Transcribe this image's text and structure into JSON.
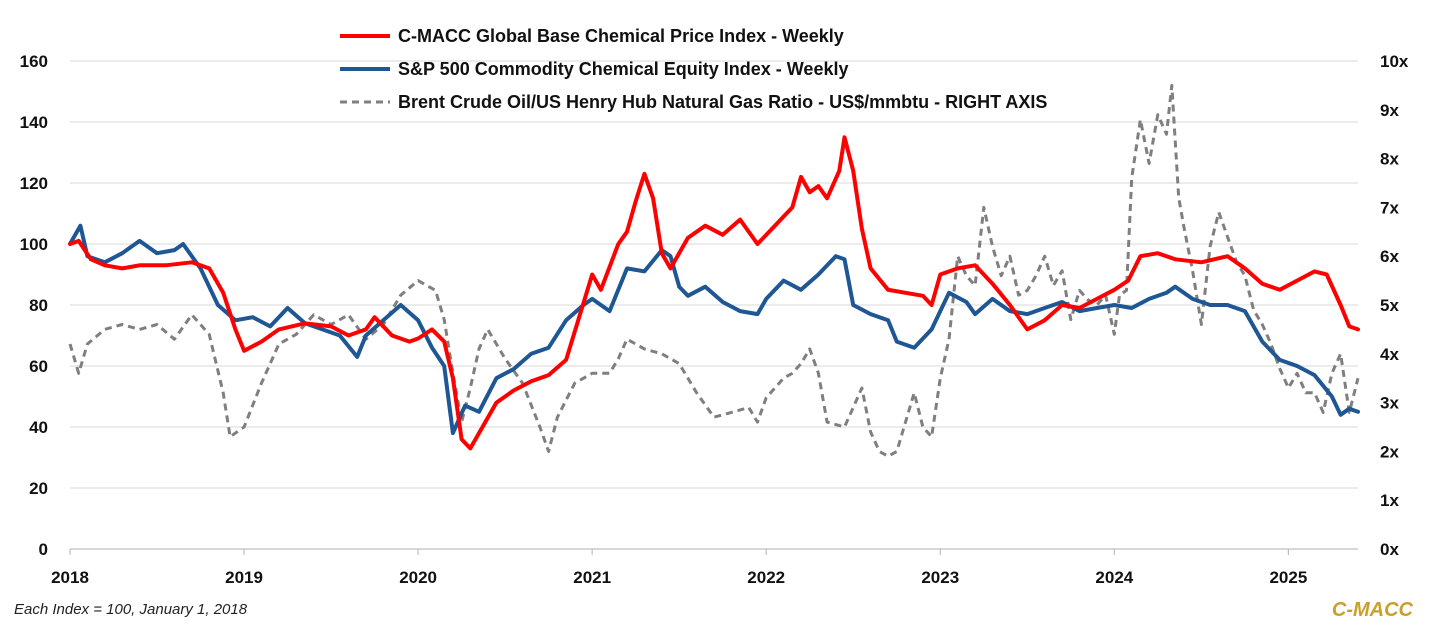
{
  "chart_data": {
    "type": "line",
    "title": "",
    "left_axis": {
      "min": 0,
      "max": 160,
      "ticks": [
        "0",
        "20",
        "40",
        "60",
        "80",
        "100",
        "120",
        "140",
        "160"
      ]
    },
    "right_axis": {
      "min": 0,
      "max": 10,
      "ticks": [
        "0x",
        "1x",
        "2x",
        "3x",
        "4x",
        "5x",
        "6x",
        "7x",
        "8x",
        "9x",
        "10x"
      ]
    },
    "x_axis": {
      "min": 2018.0,
      "max": 2025.4,
      "ticks": [
        "2018",
        "2019",
        "2020",
        "2021",
        "2022",
        "2023",
        "2024",
        "2025"
      ]
    },
    "grid": "horizontal",
    "legend_position": "top-center",
    "series": [
      {
        "name": "C-MACC Global Base Chemical Price Index - Weekly",
        "color": "#ff0000",
        "axis": "left",
        "style": "solid",
        "points": [
          [
            2018.0,
            100
          ],
          [
            2018.05,
            101
          ],
          [
            2018.12,
            95
          ],
          [
            2018.2,
            93
          ],
          [
            2018.3,
            92
          ],
          [
            2018.4,
            93
          ],
          [
            2018.55,
            93
          ],
          [
            2018.7,
            94
          ],
          [
            2018.8,
            92
          ],
          [
            2018.88,
            84
          ],
          [
            2018.95,
            72
          ],
          [
            2019.0,
            65
          ],
          [
            2019.1,
            68
          ],
          [
            2019.2,
            72
          ],
          [
            2019.35,
            74
          ],
          [
            2019.5,
            73
          ],
          [
            2019.6,
            70
          ],
          [
            2019.7,
            72
          ],
          [
            2019.75,
            76
          ],
          [
            2019.85,
            70
          ],
          [
            2019.95,
            68
          ],
          [
            2020.0,
            69
          ],
          [
            2020.08,
            72
          ],
          [
            2020.15,
            68
          ],
          [
            2020.2,
            56
          ],
          [
            2020.25,
            36
          ],
          [
            2020.3,
            33
          ],
          [
            2020.35,
            38
          ],
          [
            2020.45,
            48
          ],
          [
            2020.55,
            52
          ],
          [
            2020.65,
            55
          ],
          [
            2020.75,
            57
          ],
          [
            2020.85,
            62
          ],
          [
            2020.92,
            75
          ],
          [
            2021.0,
            90
          ],
          [
            2021.05,
            85
          ],
          [
            2021.15,
            100
          ],
          [
            2021.2,
            104
          ],
          [
            2021.25,
            114
          ],
          [
            2021.3,
            123
          ],
          [
            2021.35,
            115
          ],
          [
            2021.4,
            97
          ],
          [
            2021.45,
            92
          ],
          [
            2021.55,
            102
          ],
          [
            2021.65,
            106
          ],
          [
            2021.75,
            103
          ],
          [
            2021.85,
            108
          ],
          [
            2021.95,
            100
          ],
          [
            2022.05,
            106
          ],
          [
            2022.15,
            112
          ],
          [
            2022.2,
            122
          ],
          [
            2022.25,
            117
          ],
          [
            2022.3,
            119
          ],
          [
            2022.35,
            115
          ],
          [
            2022.42,
            124
          ],
          [
            2022.45,
            135
          ],
          [
            2022.5,
            124
          ],
          [
            2022.55,
            105
          ],
          [
            2022.6,
            92
          ],
          [
            2022.7,
            85
          ],
          [
            2022.8,
            84
          ],
          [
            2022.9,
            83
          ],
          [
            2022.95,
            80
          ],
          [
            2023.0,
            90
          ],
          [
            2023.1,
            92
          ],
          [
            2023.2,
            93
          ],
          [
            2023.3,
            87
          ],
          [
            2023.4,
            80
          ],
          [
            2023.5,
            72
          ],
          [
            2023.6,
            75
          ],
          [
            2023.7,
            80
          ],
          [
            2023.8,
            79
          ],
          [
            2023.9,
            82
          ],
          [
            2024.0,
            85
          ],
          [
            2024.08,
            88
          ],
          [
            2024.15,
            96
          ],
          [
            2024.25,
            97
          ],
          [
            2024.35,
            95
          ],
          [
            2024.5,
            94
          ],
          [
            2024.65,
            96
          ],
          [
            2024.75,
            92
          ],
          [
            2024.85,
            87
          ],
          [
            2024.95,
            85
          ],
          [
            2025.05,
            88
          ],
          [
            2025.15,
            91
          ],
          [
            2025.22,
            90
          ],
          [
            2025.3,
            80
          ],
          [
            2025.35,
            73
          ],
          [
            2025.4,
            72
          ]
        ]
      },
      {
        "name": "S&P 500 Commodity Chemical Equity Index - Weekly",
        "color": "#1f5694",
        "axis": "left",
        "style": "solid",
        "points": [
          [
            2018.0,
            100
          ],
          [
            2018.06,
            106
          ],
          [
            2018.1,
            96
          ],
          [
            2018.2,
            94
          ],
          [
            2018.3,
            97
          ],
          [
            2018.4,
            101
          ],
          [
            2018.5,
            97
          ],
          [
            2018.6,
            98
          ],
          [
            2018.65,
            100
          ],
          [
            2018.75,
            92
          ],
          [
            2018.85,
            80
          ],
          [
            2018.95,
            75
          ],
          [
            2019.05,
            76
          ],
          [
            2019.15,
            73
          ],
          [
            2019.25,
            79
          ],
          [
            2019.35,
            74
          ],
          [
            2019.45,
            72
          ],
          [
            2019.55,
            70
          ],
          [
            2019.65,
            63
          ],
          [
            2019.7,
            70
          ],
          [
            2019.8,
            75
          ],
          [
            2019.9,
            80
          ],
          [
            2020.0,
            75
          ],
          [
            2020.08,
            66
          ],
          [
            2020.15,
            60
          ],
          [
            2020.2,
            38
          ],
          [
            2020.27,
            47
          ],
          [
            2020.35,
            45
          ],
          [
            2020.45,
            56
          ],
          [
            2020.55,
            59
          ],
          [
            2020.65,
            64
          ],
          [
            2020.75,
            66
          ],
          [
            2020.85,
            75
          ],
          [
            2020.95,
            80
          ],
          [
            2021.0,
            82
          ],
          [
            2021.05,
            80
          ],
          [
            2021.1,
            78
          ],
          [
            2021.2,
            92
          ],
          [
            2021.3,
            91
          ],
          [
            2021.4,
            98
          ],
          [
            2021.45,
            96
          ],
          [
            2021.5,
            86
          ],
          [
            2021.55,
            83
          ],
          [
            2021.65,
            86
          ],
          [
            2021.75,
            81
          ],
          [
            2021.85,
            78
          ],
          [
            2021.95,
            77
          ],
          [
            2022.0,
            82
          ],
          [
            2022.1,
            88
          ],
          [
            2022.2,
            85
          ],
          [
            2022.3,
            90
          ],
          [
            2022.4,
            96
          ],
          [
            2022.45,
            95
          ],
          [
            2022.5,
            80
          ],
          [
            2022.6,
            77
          ],
          [
            2022.7,
            75
          ],
          [
            2022.75,
            68
          ],
          [
            2022.85,
            66
          ],
          [
            2022.95,
            72
          ],
          [
            2023.05,
            84
          ],
          [
            2023.15,
            81
          ],
          [
            2023.2,
            77
          ],
          [
            2023.3,
            82
          ],
          [
            2023.4,
            78
          ],
          [
            2023.5,
            77
          ],
          [
            2023.6,
            79
          ],
          [
            2023.7,
            81
          ],
          [
            2023.8,
            78
          ],
          [
            2023.9,
            79
          ],
          [
            2024.0,
            80
          ],
          [
            2024.1,
            79
          ],
          [
            2024.2,
            82
          ],
          [
            2024.3,
            84
          ],
          [
            2024.35,
            86
          ],
          [
            2024.45,
            82
          ],
          [
            2024.55,
            80
          ],
          [
            2024.65,
            80
          ],
          [
            2024.75,
            78
          ],
          [
            2024.85,
            68
          ],
          [
            2024.95,
            62
          ],
          [
            2025.05,
            60
          ],
          [
            2025.15,
            57
          ],
          [
            2025.25,
            50
          ],
          [
            2025.3,
            44
          ],
          [
            2025.35,
            46
          ],
          [
            2025.4,
            45
          ]
        ]
      },
      {
        "name": "Brent Crude Oil/US Henry Hub Natural Gas Ratio - US$/mmbtu - RIGHT AXIS",
        "color": "#7f7f7f",
        "axis": "right",
        "style": "dashed",
        "points": [
          [
            2018.0,
            4.2
          ],
          [
            2018.05,
            3.6
          ],
          [
            2018.1,
            4.2
          ],
          [
            2018.2,
            4.5
          ],
          [
            2018.3,
            4.6
          ],
          [
            2018.4,
            4.5
          ],
          [
            2018.5,
            4.6
          ],
          [
            2018.6,
            4.3
          ],
          [
            2018.7,
            4.8
          ],
          [
            2018.8,
            4.4
          ],
          [
            2018.88,
            3.2
          ],
          [
            2018.92,
            2.3
          ],
          [
            2019.0,
            2.5
          ],
          [
            2019.1,
            3.4
          ],
          [
            2019.2,
            4.2
          ],
          [
            2019.3,
            4.4
          ],
          [
            2019.4,
            4.8
          ],
          [
            2019.5,
            4.6
          ],
          [
            2019.6,
            4.8
          ],
          [
            2019.7,
            4.3
          ],
          [
            2019.8,
            4.6
          ],
          [
            2019.9,
            5.2
          ],
          [
            2020.0,
            5.5
          ],
          [
            2020.1,
            5.3
          ],
          [
            2020.15,
            4.7
          ],
          [
            2020.2,
            3.6
          ],
          [
            2020.25,
            2.6
          ],
          [
            2020.3,
            3.3
          ],
          [
            2020.35,
            4.1
          ],
          [
            2020.4,
            4.5
          ],
          [
            2020.45,
            4.2
          ],
          [
            2020.5,
            3.9
          ],
          [
            2020.6,
            3.4
          ],
          [
            2020.7,
            2.5
          ],
          [
            2020.75,
            2.0
          ],
          [
            2020.8,
            2.7
          ],
          [
            2020.9,
            3.4
          ],
          [
            2021.0,
            3.6
          ],
          [
            2021.1,
            3.6
          ],
          [
            2021.15,
            3.9
          ],
          [
            2021.2,
            4.3
          ],
          [
            2021.3,
            4.1
          ],
          [
            2021.4,
            4.0
          ],
          [
            2021.5,
            3.8
          ],
          [
            2021.6,
            3.2
          ],
          [
            2021.7,
            2.7
          ],
          [
            2021.8,
            2.8
          ],
          [
            2021.9,
            2.9
          ],
          [
            2021.95,
            2.6
          ],
          [
            2022.0,
            3.1
          ],
          [
            2022.1,
            3.5
          ],
          [
            2022.15,
            3.6
          ],
          [
            2022.2,
            3.8
          ],
          [
            2022.25,
            4.1
          ],
          [
            2022.3,
            3.6
          ],
          [
            2022.35,
            2.6
          ],
          [
            2022.45,
            2.5
          ],
          [
            2022.55,
            3.3
          ],
          [
            2022.6,
            2.4
          ],
          [
            2022.65,
            2.0
          ],
          [
            2022.7,
            1.9
          ],
          [
            2022.75,
            2.0
          ],
          [
            2022.85,
            3.2
          ],
          [
            2022.9,
            2.5
          ],
          [
            2022.95,
            2.3
          ],
          [
            2023.0,
            3.5
          ],
          [
            2023.05,
            4.3
          ],
          [
            2023.1,
            6.0
          ],
          [
            2023.15,
            5.6
          ],
          [
            2023.2,
            5.4
          ],
          [
            2023.25,
            7.0
          ],
          [
            2023.3,
            6.2
          ],
          [
            2023.35,
            5.6
          ],
          [
            2023.4,
            6.0
          ],
          [
            2023.45,
            5.2
          ],
          [
            2023.5,
            5.3
          ],
          [
            2023.55,
            5.6
          ],
          [
            2023.6,
            6.0
          ],
          [
            2023.65,
            5.4
          ],
          [
            2023.7,
            5.7
          ],
          [
            2023.75,
            4.7
          ],
          [
            2023.8,
            5.3
          ],
          [
            2023.85,
            5.1
          ],
          [
            2023.9,
            5.0
          ],
          [
            2023.95,
            5.2
          ],
          [
            2024.0,
            4.4
          ],
          [
            2024.03,
            5.2
          ],
          [
            2024.07,
            5.3
          ],
          [
            2024.1,
            7.6
          ],
          [
            2024.15,
            8.8
          ],
          [
            2024.2,
            7.9
          ],
          [
            2024.25,
            8.9
          ],
          [
            2024.3,
            8.5
          ],
          [
            2024.33,
            9.5
          ],
          [
            2024.37,
            7.2
          ],
          [
            2024.4,
            6.6
          ],
          [
            2024.45,
            5.7
          ],
          [
            2024.5,
            4.6
          ],
          [
            2024.55,
            6.2
          ],
          [
            2024.6,
            6.9
          ],
          [
            2024.65,
            6.4
          ],
          [
            2024.7,
            5.9
          ],
          [
            2024.75,
            5.6
          ],
          [
            2024.8,
            4.9
          ],
          [
            2024.85,
            4.6
          ],
          [
            2024.9,
            4.2
          ],
          [
            2024.95,
            3.7
          ],
          [
            2025.0,
            3.3
          ],
          [
            2025.05,
            3.6
          ],
          [
            2025.1,
            3.2
          ],
          [
            2025.15,
            3.2
          ],
          [
            2025.2,
            2.8
          ],
          [
            2025.25,
            3.6
          ],
          [
            2025.3,
            4.0
          ],
          [
            2025.35,
            2.8
          ],
          [
            2025.4,
            3.5
          ]
        ]
      }
    ],
    "footnote": "Each Index = 100, January 1, 2018",
    "brand": "C-MACC"
  }
}
